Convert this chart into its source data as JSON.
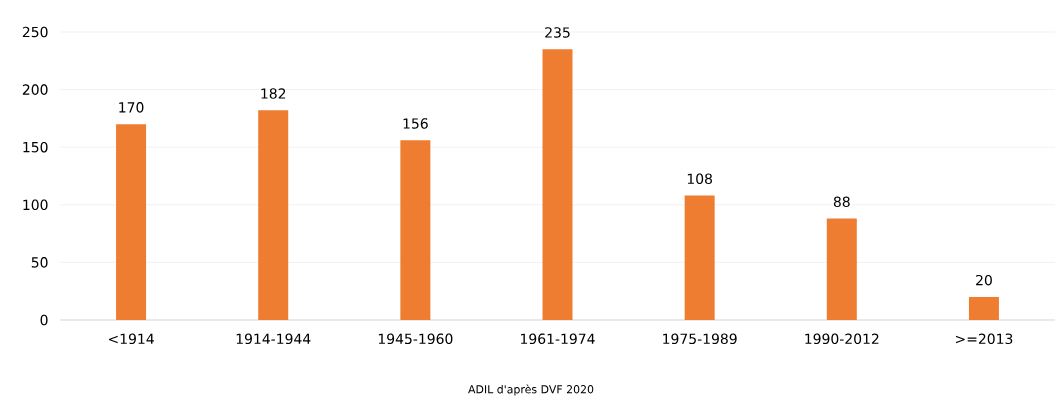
{
  "chart_data": {
    "type": "bar",
    "categories": [
      "<1914",
      "1914-1944",
      "1945-1960",
      "1961-1974",
      "1975-1989",
      "1990-2012",
      ">=2013"
    ],
    "values": [
      170,
      182,
      156,
      235,
      108,
      88,
      20
    ],
    "color": "#ee7d31",
    "ylim": [
      0,
      250
    ],
    "yticks": [
      0,
      50,
      100,
      150,
      200,
      250
    ],
    "grid": "y",
    "data_labels": true,
    "annotations": [
      "ADIL d'après DVF 2020"
    ]
  }
}
